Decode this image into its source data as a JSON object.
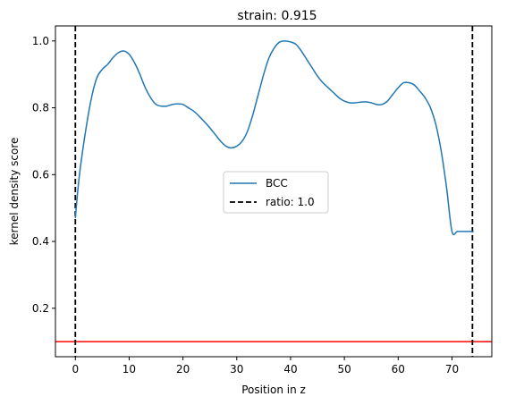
{
  "chart_data": {
    "type": "line",
    "title": "strain: 0.915",
    "xlabel": "Position in z",
    "ylabel": "kernel density score",
    "xlim": [
      -3.7,
      77.4
    ],
    "ylim": [
      0.055,
      1.045
    ],
    "xticks": [
      0,
      10,
      20,
      30,
      40,
      50,
      60,
      70
    ],
    "yticks": [
      0.2,
      0.4,
      0.6,
      0.8,
      1.0
    ],
    "xtick_labels": [
      "0",
      "10",
      "20",
      "30",
      "40",
      "50",
      "60",
      "70"
    ],
    "ytick_labels": [
      "0.2",
      "0.4",
      "0.6",
      "0.8",
      "1.0"
    ],
    "grid": false,
    "legend_position": "center",
    "series": [
      {
        "name": "BCC",
        "color": "#1f77b4",
        "style": "solid",
        "x": [
          0,
          0.5,
          1,
          2,
          3,
          4,
          5,
          6,
          7,
          8,
          9,
          10,
          11,
          12,
          13,
          14,
          15,
          16,
          17,
          18,
          19,
          20,
          21,
          22,
          23,
          24,
          25,
          26,
          27,
          28,
          29,
          30,
          31,
          32,
          33,
          34,
          35,
          36,
          37,
          38,
          39,
          40,
          41,
          42,
          43,
          44,
          45,
          46,
          47,
          48,
          49,
          50,
          51,
          52,
          53,
          54,
          55,
          56,
          57,
          58,
          59,
          60,
          61,
          62,
          63,
          64,
          65,
          66,
          67,
          68,
          69,
          70,
          71,
          72,
          73,
          74
        ],
        "y": [
          0.47,
          0.56,
          0.63,
          0.74,
          0.83,
          0.89,
          0.915,
          0.93,
          0.95,
          0.965,
          0.97,
          0.96,
          0.935,
          0.9,
          0.86,
          0.83,
          0.81,
          0.805,
          0.805,
          0.81,
          0.812,
          0.81,
          0.8,
          0.79,
          0.775,
          0.758,
          0.74,
          0.72,
          0.7,
          0.685,
          0.68,
          0.685,
          0.7,
          0.73,
          0.78,
          0.84,
          0.9,
          0.95,
          0.98,
          0.997,
          1.0,
          0.997,
          0.99,
          0.97,
          0.945,
          0.92,
          0.895,
          0.875,
          0.86,
          0.845,
          0.83,
          0.82,
          0.815,
          0.815,
          0.817,
          0.818,
          0.815,
          0.81,
          0.81,
          0.82,
          0.84,
          0.86,
          0.875,
          0.875,
          0.868,
          0.85,
          0.83,
          0.8,
          0.75,
          0.67,
          0.56,
          0.43,
          0.43,
          0.43,
          0.43,
          0.43
        ]
      },
      {
        "name": "ratio: 1.0",
        "color": "#000000",
        "style": "dashed",
        "vlines": [
          0,
          73.8
        ]
      }
    ],
    "hline": {
      "y": 0.1,
      "color": "#ff0000"
    }
  }
}
